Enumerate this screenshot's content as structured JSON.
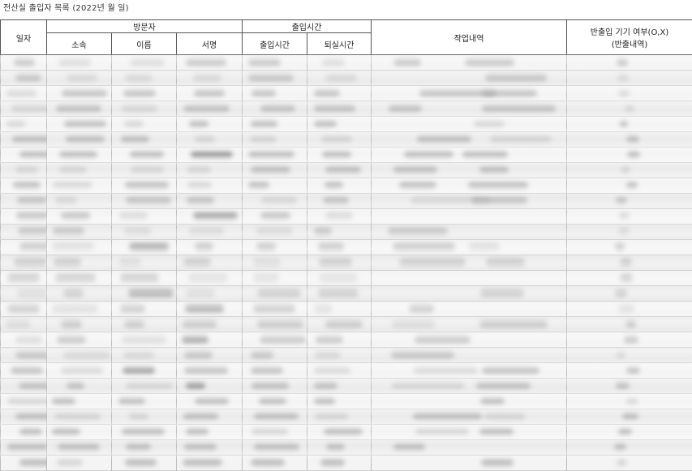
{
  "document": {
    "title": "전산실 출입자 목록 (2022년   월   일)"
  },
  "table": {
    "headers": {
      "date": "일자",
      "visitor_group": "방문자",
      "org": "소속",
      "name": "이름",
      "signature": "서명",
      "time_group": "출입시간",
      "time_in": "출입시간",
      "time_out": "퇴실시간",
      "work": "작업내역",
      "carry_line1": "반출입 기기 여부(O,X)",
      "carry_line2": "(반출내역)"
    },
    "row_count": 27,
    "rows_note_visible": "handwritten entries are blurred and illegible"
  }
}
